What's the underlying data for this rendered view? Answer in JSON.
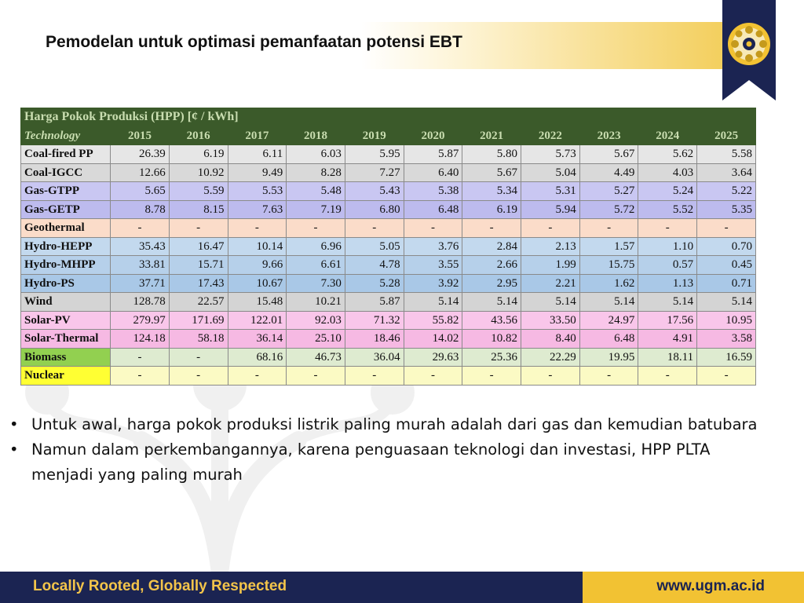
{
  "slide": {
    "title": "Pemodelan untuk optimasi pemanfaatan potensi EBT"
  },
  "table": {
    "caption": "Harga Pokok Produksi (HPP) [¢ / kWh]",
    "tech_header": "Technology",
    "years": [
      "2015",
      "2016",
      "2017",
      "2018",
      "2019",
      "2020",
      "2021",
      "2022",
      "2023",
      "2024",
      "2025"
    ],
    "rows": [
      {
        "name": "Coal-fired PP",
        "color": "#e6e6e6",
        "values": [
          "26.39",
          "6.19",
          "6.11",
          "6.03",
          "5.95",
          "5.87",
          "5.80",
          "5.73",
          "5.67",
          "5.62",
          "5.58"
        ]
      },
      {
        "name": "Coal-IGCC",
        "color": "#d9d9d9",
        "values": [
          "12.66",
          "10.92",
          "9.49",
          "8.28",
          "7.27",
          "6.40",
          "5.67",
          "5.04",
          "4.49",
          "4.03",
          "3.64"
        ]
      },
      {
        "name": "Gas-GTPP",
        "color": "#c9c7f2",
        "values": [
          "5.65",
          "5.59",
          "5.53",
          "5.48",
          "5.43",
          "5.38",
          "5.34",
          "5.31",
          "5.27",
          "5.24",
          "5.22"
        ]
      },
      {
        "name": "Gas-GETP",
        "color": "#bdbbee",
        "values": [
          "8.78",
          "8.15",
          "7.63",
          "7.19",
          "6.80",
          "6.48",
          "6.19",
          "5.94",
          "5.72",
          "5.52",
          "5.35"
        ]
      },
      {
        "name": "Geothermal",
        "color": "#fbdcc9",
        "values": [
          "-",
          "-",
          "-",
          "-",
          "-",
          "-",
          "-",
          "-",
          "-",
          "-",
          "-"
        ]
      },
      {
        "name": "Hydro-HEPP",
        "color": "#c3d9ee",
        "values": [
          "35.43",
          "16.47",
          "10.14",
          "6.96",
          "5.05",
          "3.76",
          "2.84",
          "2.13",
          "1.57",
          "1.10",
          "0.70"
        ]
      },
      {
        "name": "Hydro-MHPP",
        "color": "#b6d0ea",
        "values": [
          "33.81",
          "15.71",
          "9.66",
          "6.61",
          "4.78",
          "3.55",
          "2.66",
          "1.99",
          "15.75",
          "0.57",
          "0.45"
        ]
      },
      {
        "name": "Hydro-PS",
        "color": "#a9c8e7",
        "values": [
          "37.71",
          "17.43",
          "10.67",
          "7.30",
          "5.28",
          "3.92",
          "2.95",
          "2.21",
          "1.62",
          "1.13",
          "0.71"
        ]
      },
      {
        "name": "Wind",
        "color": "#d4d4d4",
        "values": [
          "128.78",
          "22.57",
          "15.48",
          "10.21",
          "5.87",
          "5.14",
          "5.14",
          "5.14",
          "5.14",
          "5.14",
          "5.14"
        ]
      },
      {
        "name": "Solar-PV",
        "color": "#f9c6ea",
        "values": [
          "279.97",
          "171.69",
          "122.01",
          "92.03",
          "71.32",
          "55.82",
          "43.56",
          "33.50",
          "24.97",
          "17.56",
          "10.95"
        ]
      },
      {
        "name": "Solar-Thermal",
        "color": "#f6b9e3",
        "values": [
          "124.18",
          "58.18",
          "36.14",
          "25.10",
          "18.46",
          "14.02",
          "10.82",
          "8.40",
          "6.48",
          "4.91",
          "3.58"
        ]
      },
      {
        "name": "Biomass",
        "color": "#deebd0",
        "name_color": "#92d050",
        "values": [
          "-",
          "-",
          "68.16",
          "46.73",
          "36.04",
          "29.63",
          "25.36",
          "22.29",
          "19.95",
          "18.11",
          "16.59"
        ]
      },
      {
        "name": "Nuclear",
        "color": "#fbfac4",
        "name_color": "#ffff33",
        "values": [
          "-",
          "-",
          "-",
          "-",
          "-",
          "-",
          "-",
          "-",
          "-",
          "-",
          "-"
        ]
      }
    ]
  },
  "bullets": [
    "Untuk awal, harga pokok produksi listrik paling murah adalah dari gas dan kemudian batubara",
    "Namun dalam perkembangannya, karena penguasaan teknologi dan investasi, HPP PLTA menjadi yang paling murah"
  ],
  "footer": {
    "tagline": "Locally Rooted, Globally Respected",
    "url": "www.ugm.ac.id"
  },
  "colors": {
    "navy": "#1b2452",
    "gold": "#f2c233",
    "table_header": "#3b5a2a"
  }
}
